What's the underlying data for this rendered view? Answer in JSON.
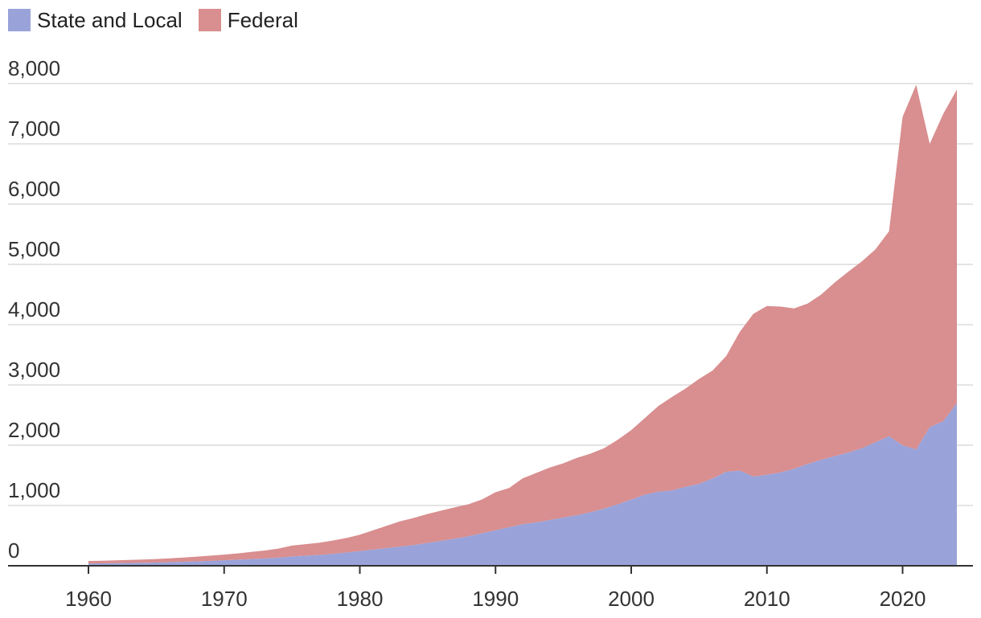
{
  "legend": [
    {
      "label": "State and Local",
      "color": "#9aa3d9"
    },
    {
      "label": "Federal",
      "color": "#d98e8f"
    }
  ],
  "chart_data": {
    "type": "area",
    "stacked": true,
    "title": "",
    "xlabel": "",
    "ylabel": "",
    "xlim": [
      1960,
      2024
    ],
    "ylim": [
      0,
      8000
    ],
    "x_ticks": [
      1960,
      1970,
      1980,
      1990,
      2000,
      2010,
      2020
    ],
    "y_ticks": [
      0,
      1000,
      2000,
      3000,
      4000,
      5000,
      6000,
      7000,
      8000
    ],
    "x_tick_labels": [
      "1960",
      "1970",
      "1980",
      "1990",
      "2000",
      "2010",
      "2020"
    ],
    "y_tick_labels": [
      "0",
      "1,000",
      "2,000",
      "3,000",
      "4,000",
      "5,000",
      "6,000",
      "7,000",
      "8,000"
    ],
    "grid": true,
    "legend_position": "top-left",
    "x": [
      1960,
      1961,
      1962,
      1963,
      1964,
      1965,
      1966,
      1967,
      1968,
      1969,
      1970,
      1971,
      1972,
      1973,
      1974,
      1975,
      1976,
      1977,
      1978,
      1979,
      1980,
      1981,
      1982,
      1983,
      1984,
      1985,
      1986,
      1987,
      1988,
      1989,
      1990,
      1991,
      1992,
      1993,
      1994,
      1995,
      1996,
      1997,
      1998,
      1999,
      2000,
      2001,
      2002,
      2003,
      2004,
      2005,
      2006,
      2007,
      2008,
      2009,
      2010,
      2011,
      2012,
      2013,
      2014,
      2015,
      2016,
      2017,
      2018,
      2019,
      2020,
      2021,
      2022,
      2023,
      2024
    ],
    "series": [
      {
        "name": "State and Local",
        "color": "#9aa3d9",
        "values": [
          38,
          40,
          43,
          46,
          50,
          54,
          60,
          66,
          74,
          82,
          92,
          102,
          112,
          122,
          135,
          155,
          168,
          180,
          198,
          220,
          245,
          270,
          295,
          320,
          345,
          380,
          415,
          450,
          490,
          540,
          590,
          640,
          690,
          720,
          760,
          800,
          840,
          890,
          950,
          1020,
          1100,
          1180,
          1230,
          1250,
          1310,
          1360,
          1450,
          1560,
          1580,
          1480,
          1510,
          1550,
          1610,
          1690,
          1760,
          1820,
          1880,
          1950,
          2050,
          2150,
          2000,
          1930,
          2300,
          2400,
          2700
        ]
      },
      {
        "name": "Federal",
        "color": "#d98e8f",
        "values": [
          42,
          44,
          47,
          50,
          53,
          58,
          63,
          70,
          78,
          86,
          93,
          103,
          118,
          132,
          150,
          180,
          190,
          202,
          220,
          240,
          270,
          320,
          370,
          420,
          450,
          480,
          500,
          520,
          530,
          560,
          630,
          650,
          760,
          820,
          870,
          900,
          950,
          970,
          1000,
          1070,
          1150,
          1270,
          1420,
          1550,
          1630,
          1740,
          1790,
          1920,
          2300,
          2700,
          2800,
          2750,
          2660,
          2660,
          2740,
          2880,
          3000,
          3100,
          3200,
          3400,
          5450,
          6050,
          4700,
          5100,
          5200
        ]
      }
    ]
  }
}
